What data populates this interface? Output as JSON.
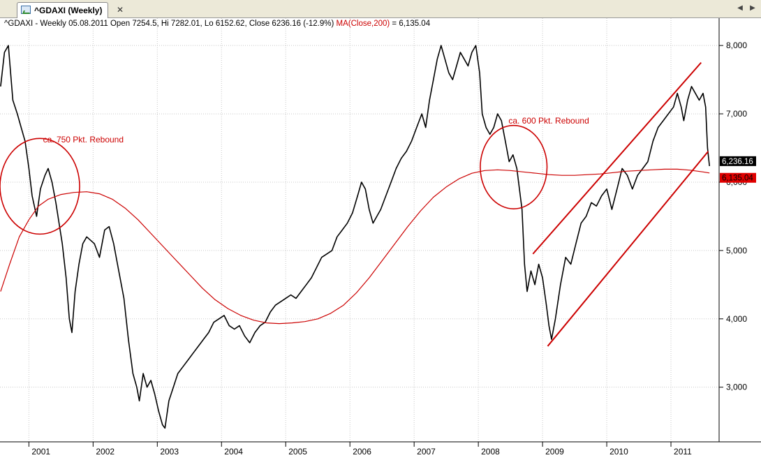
{
  "tab": {
    "title": "^GDAXI (Weekly)",
    "icon": "chart-icon",
    "close_icon": "close-icon"
  },
  "nav": {
    "left_icon": "arrow-left-icon",
    "right_icon": "arrow-right-icon"
  },
  "info": {
    "ohlc": "^GDAXI - Weekly 05.08.2011 Open 7254.5, Hi 7282.01, Lo 6152.62, Close 6236.16 (-12.9%)",
    "ma_label": "MA(Close,200)",
    "ma_value": " = 6,135.04"
  },
  "chart_data": {
    "type": "line",
    "title": "",
    "xlabel": "",
    "ylabel": "",
    "xlim": [
      2000.55,
      2011.75
    ],
    "ylim": [
      2200,
      8400
    ],
    "x_ticks": [
      {
        "x": 2001,
        "label": "2001"
      },
      {
        "x": 2002,
        "label": "2002"
      },
      {
        "x": 2003,
        "label": "2003"
      },
      {
        "x": 2004,
        "label": "2004"
      },
      {
        "x": 2005,
        "label": "2005"
      },
      {
        "x": 2006,
        "label": "2006"
      },
      {
        "x": 2007,
        "label": "2007"
      },
      {
        "x": 2008,
        "label": "2008"
      },
      {
        "x": 2009,
        "label": "2009"
      },
      {
        "x": 2010,
        "label": "2010"
      },
      {
        "x": 2011,
        "label": "2011"
      }
    ],
    "y_ticks": [
      {
        "y": 3000,
        "label": "3,000"
      },
      {
        "y": 4000,
        "label": "4,000"
      },
      {
        "y": 5000,
        "label": "5,000"
      },
      {
        "y": 6000,
        "label": "6,000"
      },
      {
        "y": 7000,
        "label": "7,000"
      },
      {
        "y": 8000,
        "label": "8,000"
      }
    ],
    "series": [
      {
        "name": "",
        "color": "#000000",
        "points": [
          [
            2000.56,
            7400
          ],
          [
            2000.62,
            7900
          ],
          [
            2000.68,
            8000
          ],
          [
            2000.75,
            7200
          ],
          [
            2000.82,
            7000
          ],
          [
            2000.88,
            6800
          ],
          [
            2000.94,
            6600
          ],
          [
            2001.0,
            6200
          ],
          [
            2001.05,
            5800
          ],
          [
            2001.12,
            5500
          ],
          [
            2001.18,
            5900
          ],
          [
            2001.25,
            6100
          ],
          [
            2001.3,
            6200
          ],
          [
            2001.36,
            6000
          ],
          [
            2001.42,
            5700
          ],
          [
            2001.47,
            5400
          ],
          [
            2001.52,
            5100
          ],
          [
            2001.58,
            4600
          ],
          [
            2001.63,
            4000
          ],
          [
            2001.67,
            3800
          ],
          [
            2001.72,
            4400
          ],
          [
            2001.78,
            4800
          ],
          [
            2001.84,
            5100
          ],
          [
            2001.9,
            5200
          ],
          [
            2001.96,
            5150
          ],
          [
            2002.02,
            5100
          ],
          [
            2002.1,
            4900
          ],
          [
            2002.18,
            5300
          ],
          [
            2002.25,
            5350
          ],
          [
            2002.32,
            5100
          ],
          [
            2002.4,
            4700
          ],
          [
            2002.48,
            4300
          ],
          [
            2002.55,
            3700
          ],
          [
            2002.62,
            3200
          ],
          [
            2002.68,
            3000
          ],
          [
            2002.72,
            2800
          ],
          [
            2002.78,
            3200
          ],
          [
            2002.84,
            3000
          ],
          [
            2002.9,
            3100
          ],
          [
            2002.96,
            2900
          ],
          [
            2003.02,
            2650
          ],
          [
            2003.08,
            2450
          ],
          [
            2003.12,
            2400
          ],
          [
            2003.18,
            2800
          ],
          [
            2003.25,
            3000
          ],
          [
            2003.32,
            3200
          ],
          [
            2003.4,
            3300
          ],
          [
            2003.48,
            3400
          ],
          [
            2003.56,
            3500
          ],
          [
            2003.64,
            3600
          ],
          [
            2003.72,
            3700
          ],
          [
            2003.8,
            3800
          ],
          [
            2003.88,
            3950
          ],
          [
            2003.96,
            4000
          ],
          [
            2004.04,
            4050
          ],
          [
            2004.12,
            3900
          ],
          [
            2004.2,
            3850
          ],
          [
            2004.28,
            3900
          ],
          [
            2004.36,
            3750
          ],
          [
            2004.44,
            3650
          ],
          [
            2004.52,
            3800
          ],
          [
            2004.6,
            3900
          ],
          [
            2004.68,
            3950
          ],
          [
            2004.76,
            4100
          ],
          [
            2004.84,
            4200
          ],
          [
            2004.92,
            4250
          ],
          [
            2005.0,
            4300
          ],
          [
            2005.08,
            4350
          ],
          [
            2005.16,
            4300
          ],
          [
            2005.24,
            4400
          ],
          [
            2005.32,
            4500
          ],
          [
            2005.4,
            4600
          ],
          [
            2005.48,
            4750
          ],
          [
            2005.56,
            4900
          ],
          [
            2005.64,
            4950
          ],
          [
            2005.72,
            5000
          ],
          [
            2005.8,
            5200
          ],
          [
            2005.88,
            5300
          ],
          [
            2005.96,
            5400
          ],
          [
            2006.04,
            5550
          ],
          [
            2006.12,
            5800
          ],
          [
            2006.18,
            6000
          ],
          [
            2006.24,
            5900
          ],
          [
            2006.3,
            5600
          ],
          [
            2006.36,
            5400
          ],
          [
            2006.42,
            5500
          ],
          [
            2006.48,
            5600
          ],
          [
            2006.56,
            5800
          ],
          [
            2006.64,
            6000
          ],
          [
            2006.72,
            6200
          ],
          [
            2006.8,
            6350
          ],
          [
            2006.88,
            6450
          ],
          [
            2006.96,
            6600
          ],
          [
            2007.04,
            6800
          ],
          [
            2007.12,
            7000
          ],
          [
            2007.18,
            6800
          ],
          [
            2007.24,
            7200
          ],
          [
            2007.3,
            7500
          ],
          [
            2007.36,
            7800
          ],
          [
            2007.42,
            8000
          ],
          [
            2007.48,
            7800
          ],
          [
            2007.54,
            7600
          ],
          [
            2007.6,
            7500
          ],
          [
            2007.66,
            7700
          ],
          [
            2007.72,
            7900
          ],
          [
            2007.78,
            7800
          ],
          [
            2007.84,
            7700
          ],
          [
            2007.9,
            7900
          ],
          [
            2007.96,
            8000
          ],
          [
            2008.02,
            7600
          ],
          [
            2008.06,
            7000
          ],
          [
            2008.12,
            6800
          ],
          [
            2008.18,
            6700
          ],
          [
            2008.24,
            6800
          ],
          [
            2008.3,
            7000
          ],
          [
            2008.36,
            6900
          ],
          [
            2008.42,
            6600
          ],
          [
            2008.48,
            6300
          ],
          [
            2008.54,
            6400
          ],
          [
            2008.6,
            6200
          ],
          [
            2008.64,
            5900
          ],
          [
            2008.68,
            5600
          ],
          [
            2008.72,
            4800
          ],
          [
            2008.76,
            4400
          ],
          [
            2008.82,
            4700
          ],
          [
            2008.88,
            4500
          ],
          [
            2008.94,
            4800
          ],
          [
            2009.0,
            4600
          ],
          [
            2009.06,
            4200
          ],
          [
            2009.1,
            3900
          ],
          [
            2009.14,
            3700
          ],
          [
            2009.2,
            4000
          ],
          [
            2009.28,
            4500
          ],
          [
            2009.36,
            4900
          ],
          [
            2009.44,
            4800
          ],
          [
            2009.52,
            5100
          ],
          [
            2009.6,
            5400
          ],
          [
            2009.68,
            5500
          ],
          [
            2009.76,
            5700
          ],
          [
            2009.84,
            5650
          ],
          [
            2009.92,
            5800
          ],
          [
            2010.0,
            5900
          ],
          [
            2010.08,
            5600
          ],
          [
            2010.16,
            5900
          ],
          [
            2010.24,
            6200
          ],
          [
            2010.32,
            6100
          ],
          [
            2010.4,
            5900
          ],
          [
            2010.48,
            6100
          ],
          [
            2010.56,
            6200
          ],
          [
            2010.64,
            6300
          ],
          [
            2010.72,
            6600
          ],
          [
            2010.8,
            6800
          ],
          [
            2010.88,
            6900
          ],
          [
            2010.96,
            7000
          ],
          [
            2011.04,
            7100
          ],
          [
            2011.1,
            7300
          ],
          [
            2011.16,
            7100
          ],
          [
            2011.2,
            6900
          ],
          [
            2011.26,
            7200
          ],
          [
            2011.32,
            7400
          ],
          [
            2011.38,
            7300
          ],
          [
            2011.44,
            7200
          ],
          [
            2011.5,
            7300
          ],
          [
            2011.54,
            7100
          ],
          [
            2011.57,
            6500
          ],
          [
            2011.6,
            6236
          ]
        ]
      },
      {
        "name": "MA(Close,200)",
        "color": "#cc0000",
        "points": [
          [
            2000.56,
            4400
          ],
          [
            2000.7,
            4800
          ],
          [
            2000.85,
            5200
          ],
          [
            2001.0,
            5450
          ],
          [
            2001.15,
            5650
          ],
          [
            2001.3,
            5750
          ],
          [
            2001.5,
            5820
          ],
          [
            2001.7,
            5850
          ],
          [
            2001.9,
            5860
          ],
          [
            2002.1,
            5830
          ],
          [
            2002.3,
            5750
          ],
          [
            2002.5,
            5620
          ],
          [
            2002.7,
            5450
          ],
          [
            2002.9,
            5250
          ],
          [
            2003.1,
            5050
          ],
          [
            2003.3,
            4850
          ],
          [
            2003.5,
            4650
          ],
          [
            2003.7,
            4450
          ],
          [
            2003.9,
            4280
          ],
          [
            2004.1,
            4150
          ],
          [
            2004.3,
            4050
          ],
          [
            2004.5,
            3980
          ],
          [
            2004.7,
            3940
          ],
          [
            2004.9,
            3930
          ],
          [
            2005.1,
            3940
          ],
          [
            2005.3,
            3960
          ],
          [
            2005.5,
            4000
          ],
          [
            2005.7,
            4080
          ],
          [
            2005.9,
            4200
          ],
          [
            2006.1,
            4380
          ],
          [
            2006.3,
            4600
          ],
          [
            2006.5,
            4850
          ],
          [
            2006.7,
            5100
          ],
          [
            2006.9,
            5350
          ],
          [
            2007.1,
            5580
          ],
          [
            2007.3,
            5780
          ],
          [
            2007.5,
            5930
          ],
          [
            2007.7,
            6050
          ],
          [
            2007.9,
            6130
          ],
          [
            2008.1,
            6170
          ],
          [
            2008.3,
            6180
          ],
          [
            2008.5,
            6170
          ],
          [
            2008.7,
            6150
          ],
          [
            2008.9,
            6130
          ],
          [
            2009.1,
            6110
          ],
          [
            2009.3,
            6100
          ],
          [
            2009.5,
            6100
          ],
          [
            2009.7,
            6110
          ],
          [
            2009.9,
            6120
          ],
          [
            2010.1,
            6140
          ],
          [
            2010.3,
            6160
          ],
          [
            2010.5,
            6170
          ],
          [
            2010.7,
            6180
          ],
          [
            2010.9,
            6190
          ],
          [
            2011.1,
            6190
          ],
          [
            2011.3,
            6175
          ],
          [
            2011.5,
            6150
          ],
          [
            2011.6,
            6135
          ]
        ]
      }
    ],
    "channel_lines": [
      {
        "color": "#cc0000",
        "from": [
          2009.08,
          3600
        ],
        "to": [
          2011.58,
          6450
        ]
      },
      {
        "color": "#cc0000",
        "from": [
          2008.85,
          4950
        ],
        "to": [
          2011.47,
          7750
        ]
      }
    ],
    "annotations": [
      {
        "text": "ca. 750 Pkt. Rebound",
        "x": 2001.22,
        "y": 6580,
        "circle": {
          "cx": 2001.17,
          "cy": 5940,
          "rx": 0.62,
          "ry": 700
        }
      },
      {
        "text": "ca. 600 Pkt. Rebound",
        "x": 2008.47,
        "y": 6860,
        "circle": {
          "cx": 2008.55,
          "cy": 6220,
          "rx": 0.52,
          "ry": 610
        }
      }
    ],
    "value_labels": [
      {
        "text": "6,236.16",
        "y": 6236.16,
        "bg": "#000000",
        "fg": "#ffffff"
      },
      {
        "text": "6,135.04",
        "y": 6135.04,
        "bg": "#e00000",
        "fg": "#000000"
      }
    ],
    "grid": true
  }
}
